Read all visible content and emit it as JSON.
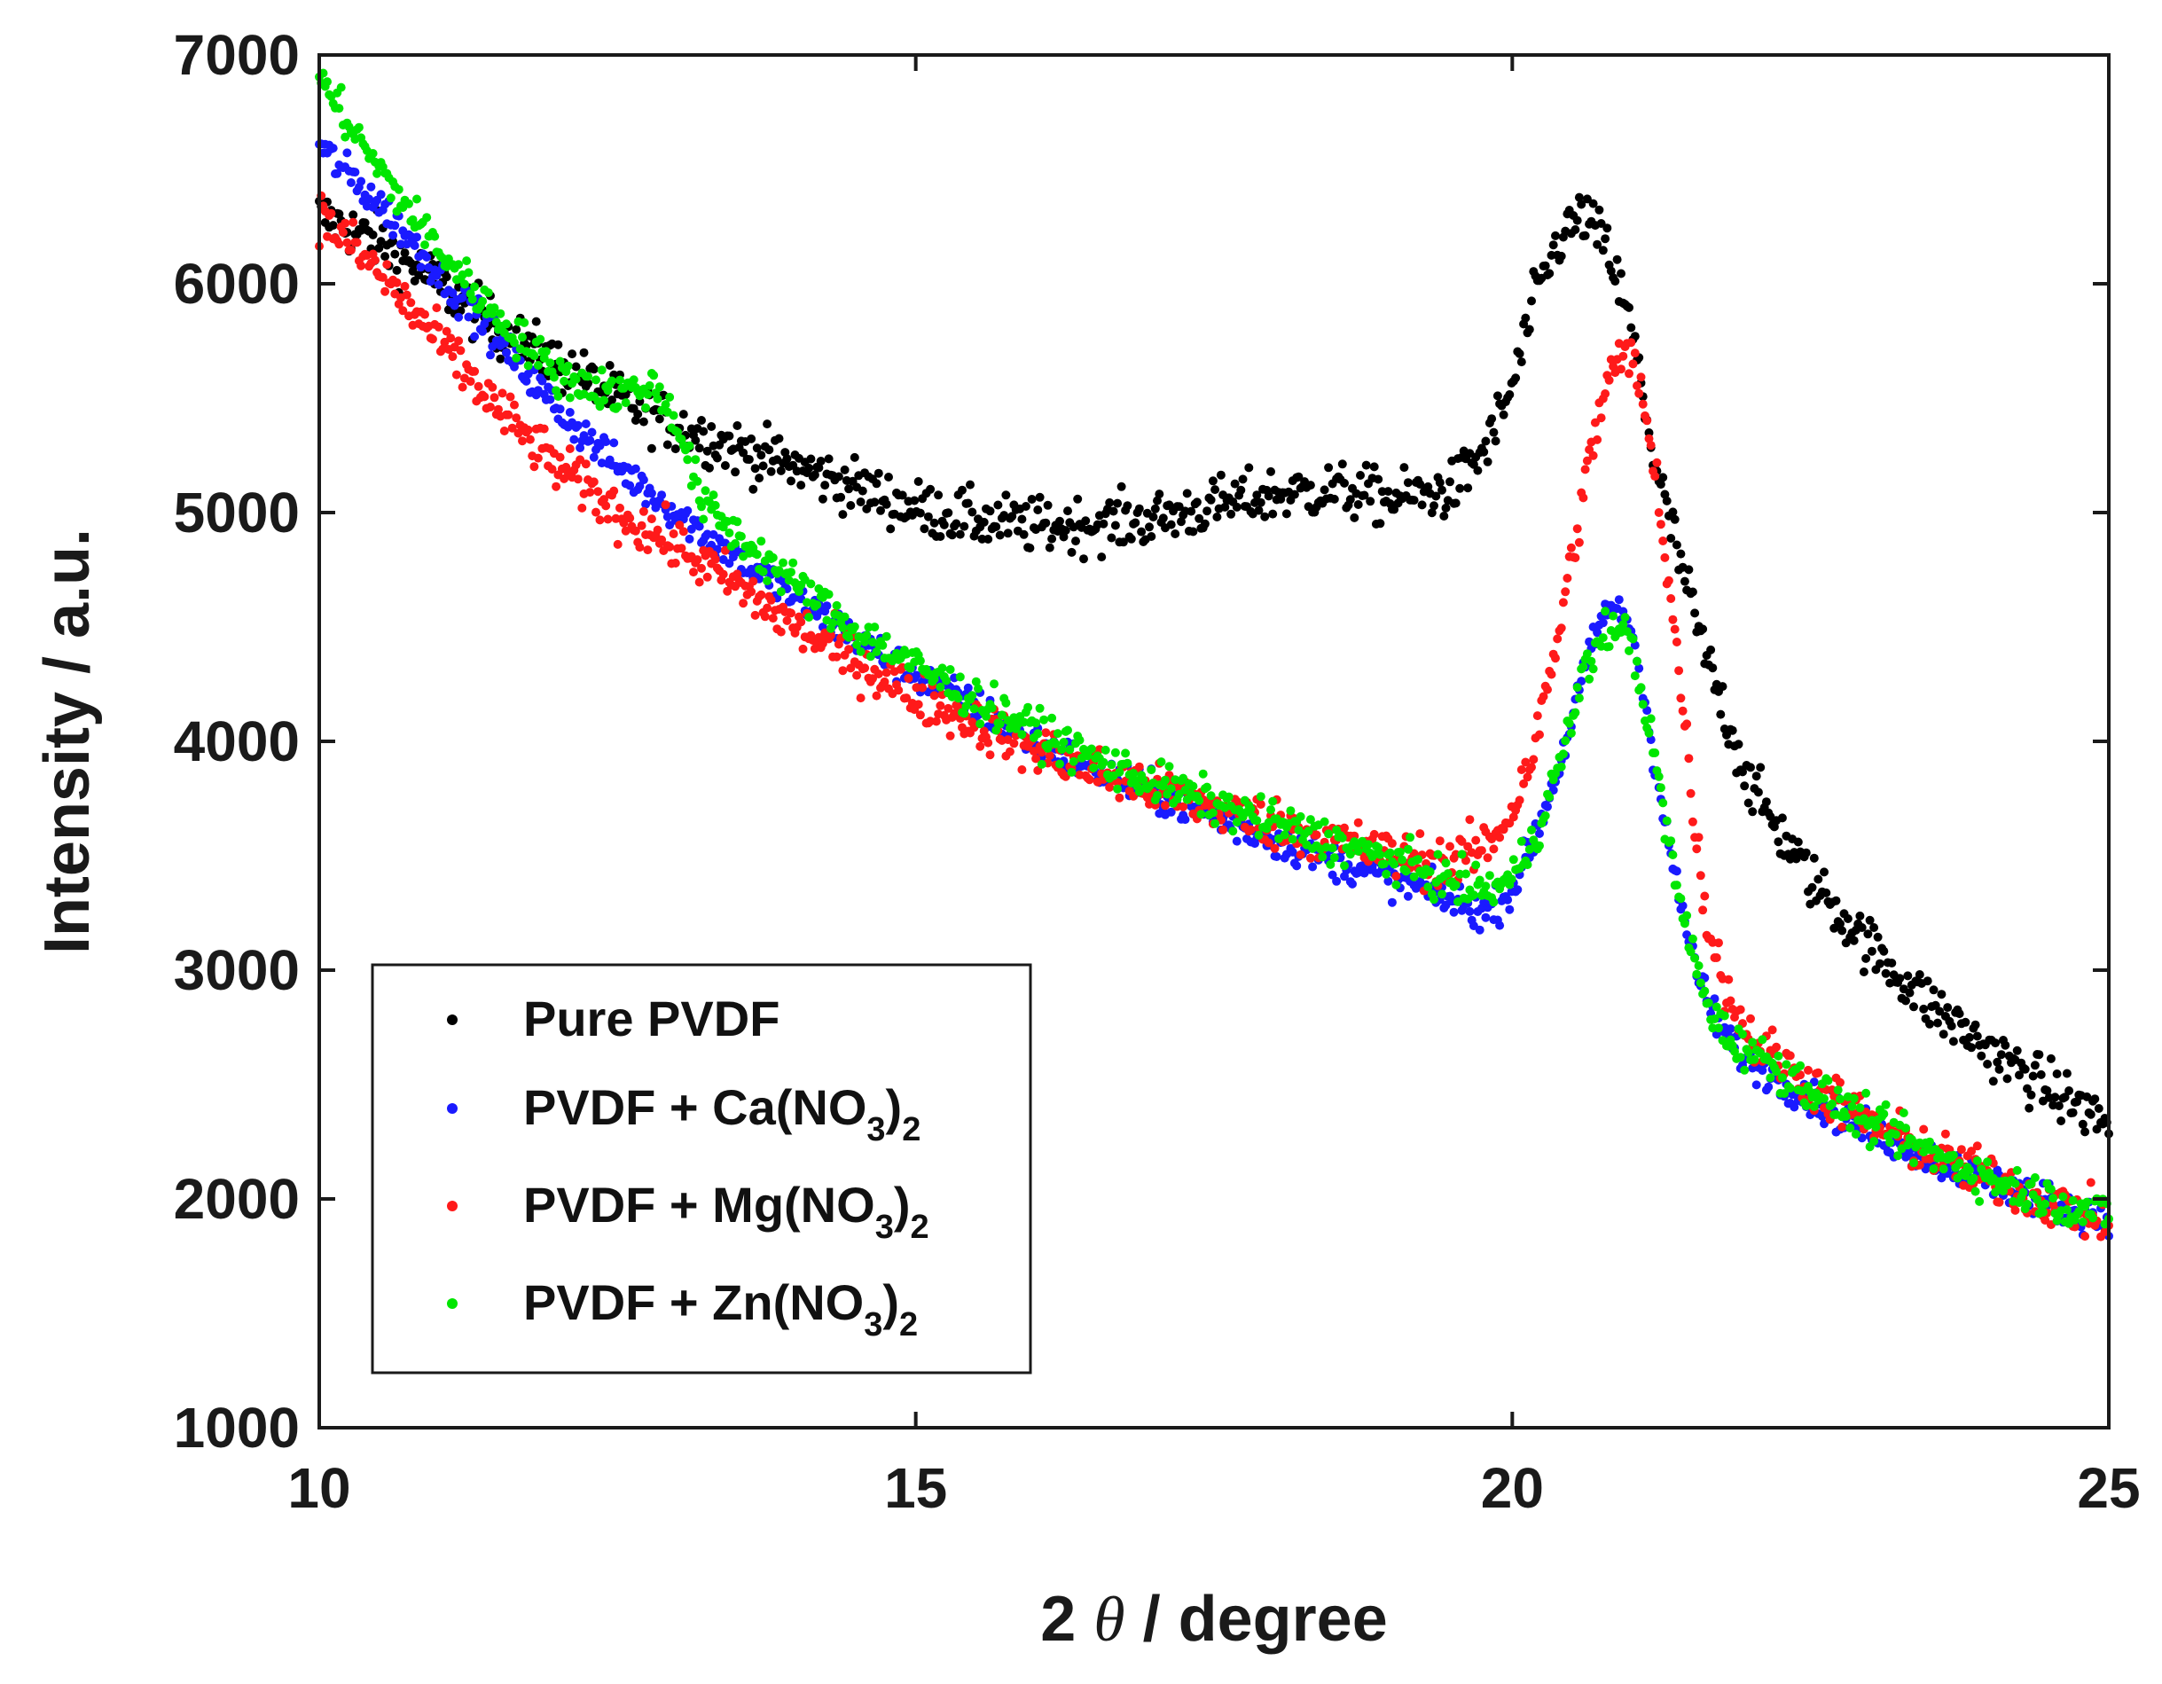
{
  "chart_data": {
    "type": "scatter",
    "title": "",
    "xlabel_parts": [
      "2 ",
      "θ",
      " / degree"
    ],
    "ylabel": "Intensity / a.u.",
    "xlim": [
      10,
      25
    ],
    "ylim": [
      1000,
      7000
    ],
    "xticks": [
      10,
      15,
      20,
      25
    ],
    "yticks": [
      1000,
      2000,
      3000,
      4000,
      5000,
      6000,
      7000
    ],
    "xtick_labels": [
      "10",
      "15",
      "20",
      "25"
    ],
    "ytick_labels": [
      "1000",
      "2000",
      "3000",
      "4000",
      "5000",
      "6000",
      "7000"
    ],
    "grid": false,
    "legend_position": "bottom-left",
    "series": [
      {
        "name": "Pure PVDF",
        "legend": {
          "main": "Pure PVDF",
          "sub1": "",
          "mid": "",
          "sub2": ""
        },
        "color": "#000000",
        "x": [
          10.0,
          10.5,
          11.0,
          11.5,
          12.0,
          12.5,
          13.0,
          13.5,
          14.0,
          14.5,
          15.0,
          15.5,
          16.0,
          16.5,
          17.0,
          17.5,
          18.0,
          18.5,
          19.0,
          19.5,
          19.8,
          20.0,
          20.2,
          20.4,
          20.6,
          20.8,
          21.0,
          21.2,
          21.4,
          21.6,
          21.8,
          22.0,
          22.5,
          23.0,
          23.5,
          24.0,
          24.5,
          25.0
        ],
        "values": [
          6300,
          6180,
          6000,
          5800,
          5650,
          5500,
          5380,
          5280,
          5200,
          5110,
          5020,
          4970,
          4940,
          4950,
          4970,
          5030,
          5080,
          5100,
          5060,
          5100,
          5300,
          5550,
          5950,
          6200,
          6300,
          6150,
          5800,
          5200,
          4800,
          4400,
          4100,
          3800,
          3400,
          3100,
          2850,
          2650,
          2480,
          2330
        ]
      },
      {
        "name": "PVDF + Ca(NO3)2",
        "legend": {
          "main": "PVDF + Ca(NO",
          "sub1": "3",
          "mid": ")",
          "sub2": "2"
        },
        "color": "#1a1aff",
        "x": [
          10.0,
          10.5,
          11.0,
          11.5,
          12.0,
          12.5,
          13.0,
          13.5,
          14.0,
          14.5,
          15.0,
          15.5,
          16.0,
          16.5,
          17.0,
          17.5,
          18.0,
          18.5,
          19.0,
          19.5,
          19.8,
          20.0,
          20.2,
          20.4,
          20.6,
          20.8,
          21.0,
          21.2,
          21.4,
          21.6,
          21.8,
          22.0,
          22.5,
          23.0,
          23.5,
          24.0,
          24.5,
          25.0
        ],
        "values": [
          6600,
          6350,
          6050,
          5750,
          5450,
          5200,
          5000,
          4800,
          4620,
          4450,
          4290,
          4150,
          4000,
          3880,
          3770,
          3670,
          3570,
          3480,
          3400,
          3300,
          3250,
          3350,
          3600,
          3900,
          4300,
          4600,
          4500,
          3900,
          3300,
          2900,
          2700,
          2600,
          2440,
          2300,
          2180,
          2080,
          1990,
          1900
        ]
      },
      {
        "name": "PVDF + Mg(NO3)2",
        "legend": {
          "main": "PVDF + Mg(NO",
          "sub1": "3",
          "mid": ")",
          "sub2": "2"
        },
        "color": "#ff1a1a",
        "x": [
          10.0,
          10.5,
          11.0,
          11.5,
          12.0,
          12.5,
          13.0,
          13.5,
          14.0,
          14.5,
          15.0,
          15.5,
          16.0,
          16.5,
          17.0,
          17.5,
          18.0,
          18.5,
          19.0,
          19.5,
          19.8,
          20.0,
          20.2,
          20.4,
          20.6,
          20.8,
          21.0,
          21.2,
          21.4,
          21.6,
          21.8,
          22.0,
          22.5,
          23.0,
          23.5,
          24.0,
          24.5,
          25.0
        ],
        "values": [
          6300,
          6050,
          5750,
          5450,
          5200,
          5000,
          4850,
          4680,
          4500,
          4350,
          4200,
          4080,
          3970,
          3870,
          3790,
          3710,
          3640,
          3570,
          3500,
          3470,
          3550,
          3700,
          4000,
          4500,
          5100,
          5600,
          5700,
          5200,
          4300,
          3300,
          2900,
          2700,
          2500,
          2330,
          2200,
          2090,
          1990,
          1900
        ]
      },
      {
        "name": "PVDF + Zn(NO3)2",
        "legend": {
          "main": "PVDF + Zn(NO",
          "sub1": "3",
          "mid": ")",
          "sub2": "2"
        },
        "color": "#00e600",
        "x": [
          10.0,
          10.5,
          11.0,
          11.5,
          12.0,
          12.5,
          12.8,
          13.0,
          13.2,
          13.5,
          14.0,
          14.5,
          15.0,
          15.5,
          16.0,
          16.5,
          17.0,
          17.5,
          18.0,
          18.5,
          19.0,
          19.5,
          19.8,
          20.0,
          20.2,
          20.4,
          20.6,
          20.8,
          21.0,
          21.2,
          21.4,
          21.6,
          21.8,
          22.0,
          22.5,
          23.0,
          23.5,
          24.0,
          24.5,
          25.0
        ],
        "values": [
          6900,
          6500,
          6150,
          5850,
          5600,
          5520,
          5550,
          5400,
          5050,
          4900,
          4680,
          4480,
          4330,
          4180,
          4050,
          3920,
          3820,
          3730,
          3640,
          3560,
          3480,
          3380,
          3350,
          3400,
          3600,
          3900,
          4300,
          4500,
          4450,
          3900,
          3300,
          2900,
          2700,
          2650,
          2480,
          2330,
          2200,
          2090,
          2000,
          1920
        ]
      }
    ]
  }
}
